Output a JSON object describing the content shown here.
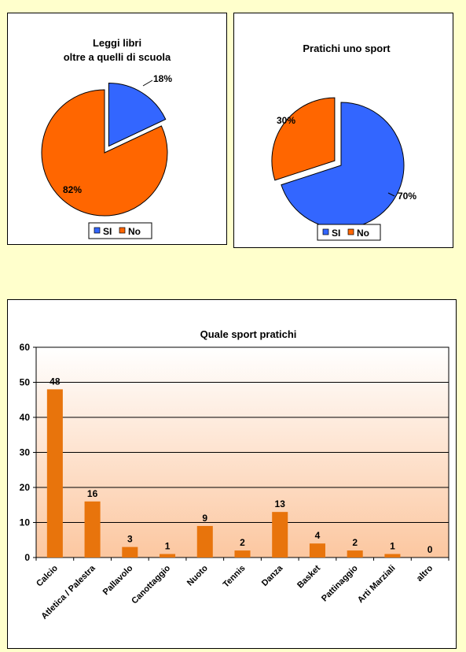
{
  "colors": {
    "page_bg": "#ffffcc",
    "si": "#3366ff",
    "no": "#ff6600",
    "bar": "#e8740c",
    "plot_bg_top": "#ffffff",
    "plot_bg_bottom": "#fcc7a0"
  },
  "chart_data": [
    {
      "type": "pie",
      "title": "Leggi libri\noltre a quelli di scuola",
      "title_lines": [
        "Leggi libri",
        "oltre a quelli di scuola"
      ],
      "slices": [
        {
          "label": "SI",
          "value": 18,
          "pct_label": "18%",
          "exploded": true
        },
        {
          "label": "No",
          "value": 82,
          "pct_label": "82%",
          "exploded": false
        }
      ],
      "legend": [
        "SI",
        "No"
      ],
      "legend_position": "bottom"
    },
    {
      "type": "pie",
      "title": "Pratichi uno sport",
      "title_lines": [
        "Pratichi uno sport"
      ],
      "slices": [
        {
          "label": "SI",
          "value": 70,
          "pct_label": "70%",
          "exploded": false
        },
        {
          "label": "No",
          "value": 30,
          "pct_label": "30%",
          "exploded": true
        }
      ],
      "legend": [
        "SI",
        "No"
      ],
      "legend_position": "bottom"
    },
    {
      "type": "bar",
      "title": "Quale sport pratichi",
      "categories": [
        "Calcio",
        "Atletica / Palestra",
        "Pallavolo",
        "Canottaggio",
        "Nuoto",
        "Tennis",
        "Danza",
        "Basket",
        "Pattinaggio",
        "Arti Marziali",
        "altro"
      ],
      "values": [
        48,
        16,
        3,
        1,
        9,
        2,
        13,
        4,
        2,
        1,
        0
      ],
      "data_labels": [
        "48",
        "16",
        "3",
        "1",
        "9",
        "2",
        "13",
        "4",
        "2",
        "1",
        "0"
      ],
      "ylim": [
        0,
        60
      ],
      "yticks": [
        0,
        10,
        20,
        30,
        40,
        50,
        60
      ],
      "ytick_labels": [
        "0",
        "10",
        "20",
        "30",
        "40",
        "50",
        "60"
      ],
      "grid": true,
      "xlabel": "",
      "ylabel": ""
    }
  ]
}
